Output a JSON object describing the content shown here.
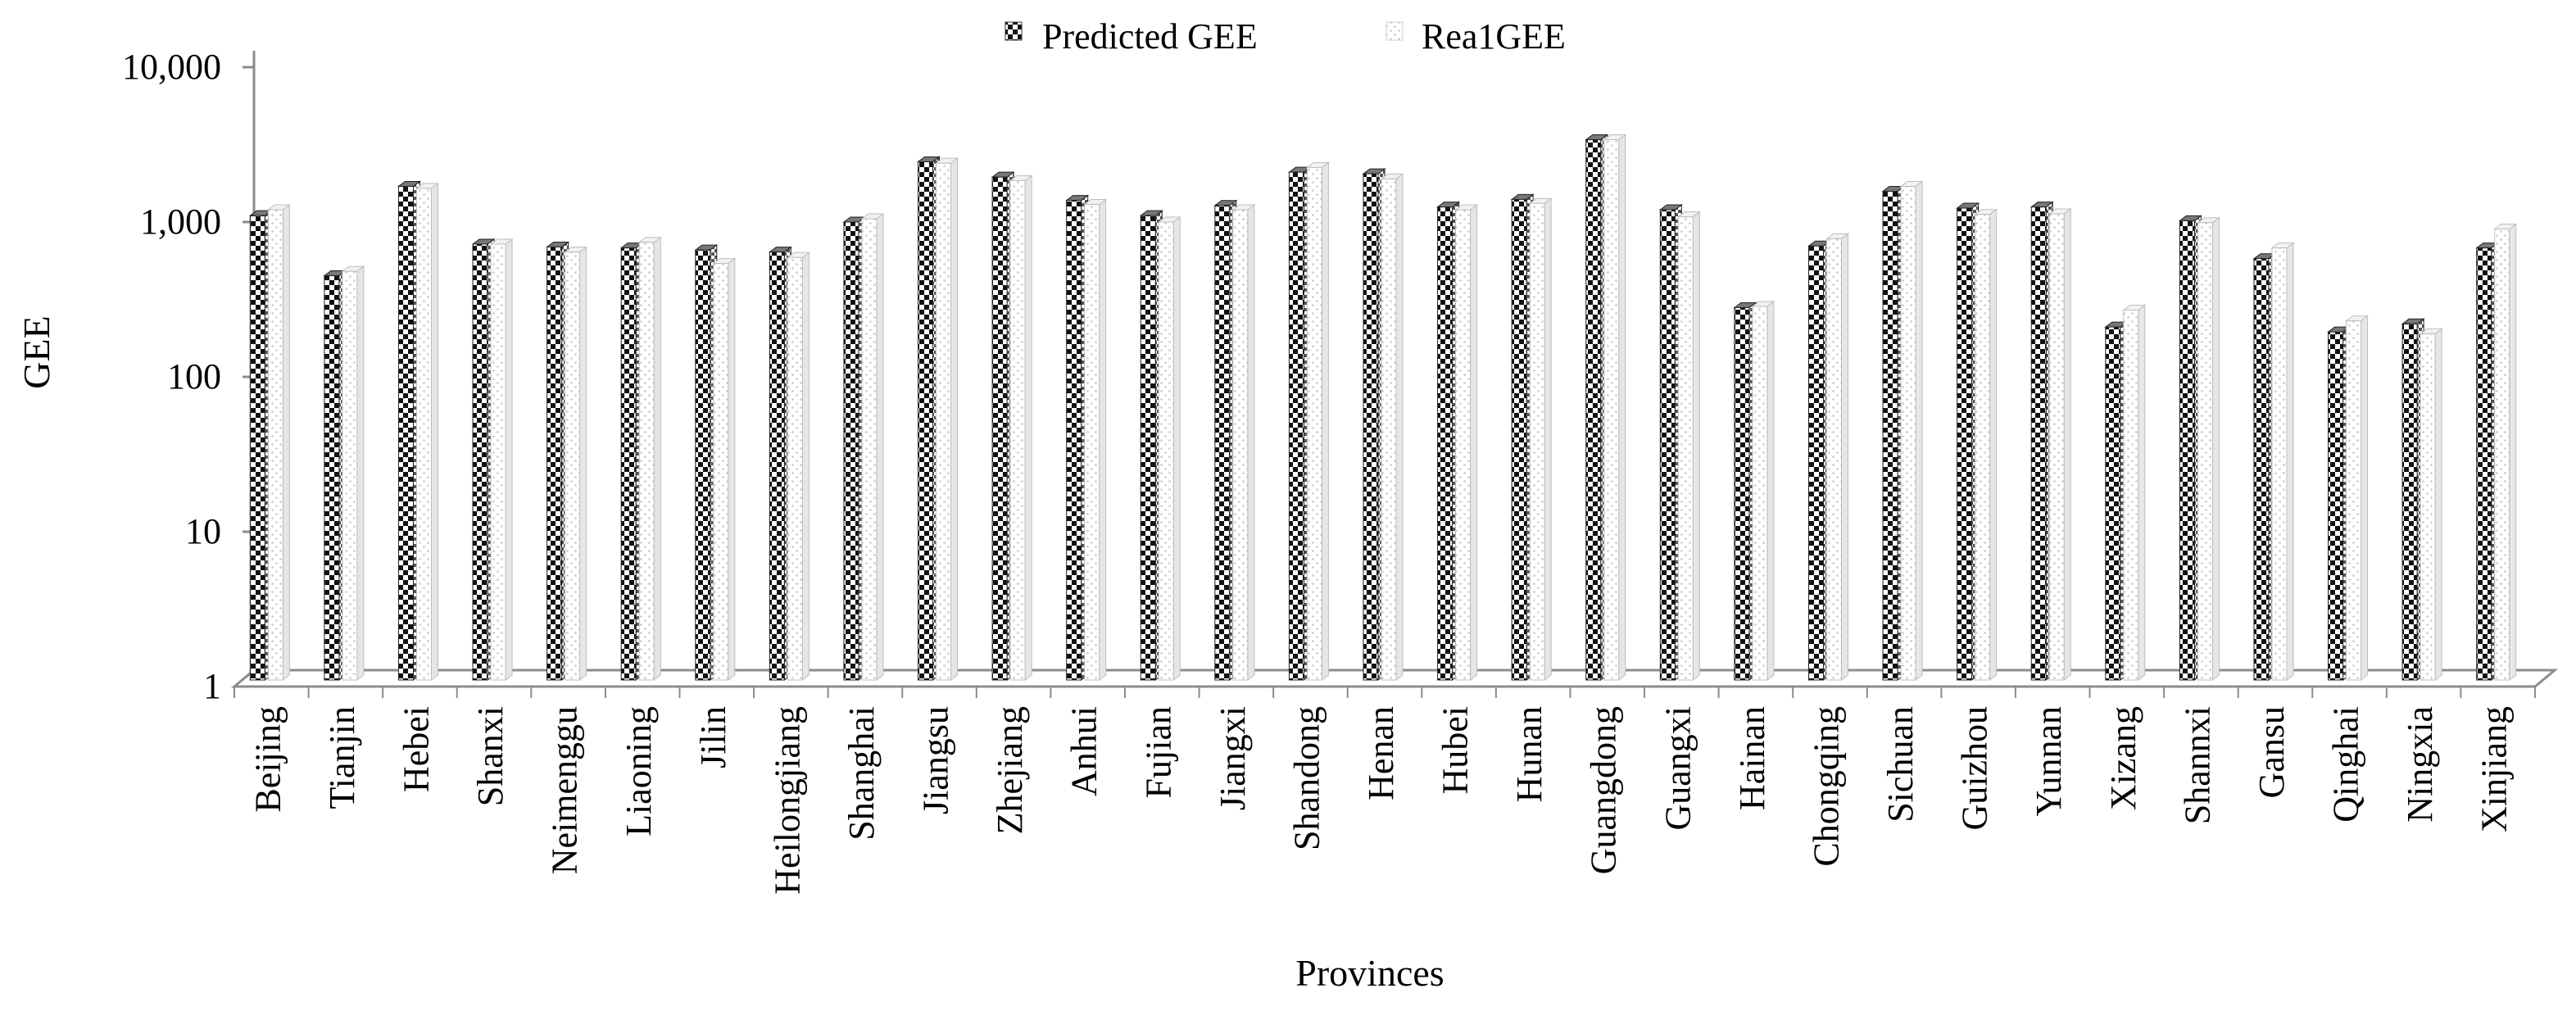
{
  "chart_data": {
    "type": "bar",
    "title": "",
    "xlabel": "Provinces",
    "ylabel": "GEE",
    "y_scale": "log",
    "ylim": [
      1,
      10000
    ],
    "y_ticks": [
      {
        "value": 1,
        "label": "1"
      },
      {
        "value": 10,
        "label": "10"
      },
      {
        "value": 100,
        "label": "100"
      },
      {
        "value": 1000,
        "label": "1,000"
      },
      {
        "value": 10000,
        "label": "10,000"
      }
    ],
    "grid": false,
    "legend_position": "top-center",
    "categories": [
      "Beijing",
      "Tianjin",
      "Hebei",
      "Shanxi",
      "Neimenggu",
      "Liaoning",
      "Jilin",
      "Heilongjiang",
      "Shanghai",
      "Jiangsu",
      "Zhejiang",
      "Anhui",
      "Fujian",
      "Jiangxi",
      "Shandong",
      "Henan",
      "Hubei",
      "Hunan",
      "Guangdong",
      "Guangxi",
      "Hainan",
      "Chongqing",
      "Sichuan",
      "Guizhou",
      "Yunnan",
      "Xizang",
      "Shannxi",
      "Gansu",
      "Qinghai",
      "Ningxia",
      "Xinjiang"
    ],
    "series": [
      {
        "name": "Predicted GEE",
        "pattern": "checker",
        "values": [
          1100,
          450,
          1700,
          720,
          690,
          680,
          660,
          640,
          1000,
          2450,
          1950,
          1380,
          1100,
          1280,
          2100,
          2050,
          1250,
          1400,
          3400,
          1200,
          280,
          700,
          1580,
          1230,
          1250,
          210,
          1020,
          580,
          195,
          220,
          680
        ]
      },
      {
        "name": "Rea1GEE",
        "pattern": "dotted",
        "values": [
          1200,
          480,
          1650,
          720,
          640,
          740,
          540,
          590,
          1050,
          2400,
          1850,
          1300,
          1000,
          1200,
          2250,
          1900,
          1200,
          1320,
          3400,
          1080,
          285,
          780,
          1700,
          1120,
          1130,
          270,
          990,
          680,
          230,
          190,
          900
        ]
      }
    ],
    "colors": {
      "predicted_dark": "#111111",
      "real_light": "#cfcfcf",
      "axis": "#8c8c8c"
    }
  }
}
